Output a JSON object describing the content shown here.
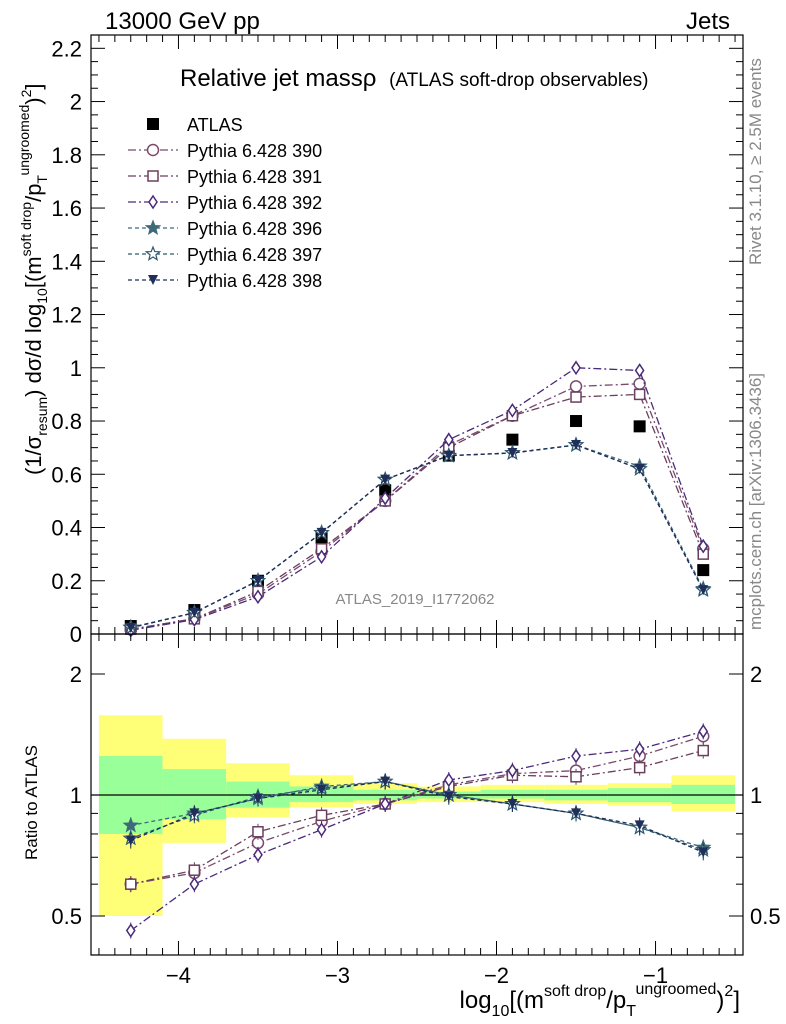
{
  "header": {
    "left": "13000 GeV pp",
    "right": "Jets"
  },
  "title": "Relative jet massρ",
  "subtitle": "(ATLAS soft-drop observables)",
  "watermark": "ATLAS_2019_I1772062",
  "side_right_top": "Rivet 3.1.10, ≥ 2.5M events",
  "side_right_bottom": "mcplots.cern.ch [arXiv:1306.3436]",
  "ylabel_main": {
    "a": "(1/σ",
    "a_sub": "resum",
    "b": ") dσ/d log",
    "b_sub": "10",
    "c": "[(m",
    "c_sup": "soft drop",
    "d": "/p",
    "d_sub": "T",
    "d_sup": "ungroomed",
    "e": ")",
    "e_sup": "2",
    "f": "]"
  },
  "ylabel_ratio": "Ratio to ATLAS",
  "xlabel": {
    "a": "log",
    "a_sub": "10",
    "b": "[(m",
    "b_sup": "soft drop",
    "c": "/p",
    "c_sub": "T",
    "c_sup": "ungroomed",
    "d": ")",
    "d_sup": "2",
    "e": "]"
  },
  "colors": {
    "atlas": "#000000",
    "p390": "#7b4b6e",
    "p391": "#6b3f5e",
    "p392": "#4a2a7a",
    "p396": "#3e6a7a",
    "p397": "#2f5a6f",
    "p398": "#1f2f5a",
    "band_inner": "#99ff99",
    "band_outer": "#ffff77"
  },
  "chart_data": {
    "type": "line",
    "x": [
      -4.3,
      -3.9,
      -3.5,
      -3.1,
      -2.7,
      -2.3,
      -1.9,
      -1.5,
      -1.1,
      -0.7
    ],
    "xlim": [
      -4.55,
      -0.45
    ],
    "ylim_main": [
      0,
      2.25
    ],
    "ylim_ratio": [
      0.34,
      2.25
    ],
    "x_ticks": [
      "−4",
      "−3",
      "−2",
      "−1"
    ],
    "x_tick_values": [
      -4,
      -3,
      -2,
      -1
    ],
    "y_ticks_main": [
      "0",
      "0.2",
      "0.4",
      "0.6",
      "0.8",
      "1",
      "1.2",
      "1.4",
      "1.6",
      "1.8",
      "2",
      "2.2"
    ],
    "y_tick_values_main": [
      0,
      0.2,
      0.4,
      0.6,
      0.8,
      1,
      1.2,
      1.4,
      1.6,
      1.8,
      2,
      2.2
    ],
    "y_ticks_ratio": [
      "0.5",
      "1",
      "2"
    ],
    "y_tick_values_ratio": [
      0.5,
      1,
      2
    ],
    "bin_edges": [
      -4.5,
      -4.1,
      -3.7,
      -3.3,
      -2.9,
      -2.5,
      -2.1,
      -1.7,
      -1.3,
      -0.9,
      -0.5
    ],
    "band_inner": [
      [
        0.8,
        1.25
      ],
      [
        0.87,
        1.16
      ],
      [
        0.93,
        1.08
      ],
      [
        0.96,
        1.05
      ],
      [
        0.97,
        1.03
      ],
      [
        0.98,
        1.02
      ],
      [
        0.98,
        1.03
      ],
      [
        0.97,
        1.03
      ],
      [
        0.96,
        1.04
      ],
      [
        0.95,
        1.06
      ]
    ],
    "band_outer": [
      [
        0.5,
        1.58
      ],
      [
        0.76,
        1.38
      ],
      [
        0.88,
        1.2
      ],
      [
        0.93,
        1.12
      ],
      [
        0.95,
        1.07
      ],
      [
        0.96,
        1.05
      ],
      [
        0.96,
        1.06
      ],
      [
        0.95,
        1.06
      ],
      [
        0.94,
        1.07
      ],
      [
        0.91,
        1.12
      ]
    ],
    "series": [
      {
        "name": "ATLAS",
        "key": "atlas",
        "marker": "square-filled",
        "dash": "none",
        "values": [
          0.03,
          0.09,
          0.2,
          0.36,
          0.54,
          0.67,
          0.73,
          0.8,
          0.78,
          0.24
        ],
        "ratio": [
          1,
          1,
          1,
          1,
          1,
          1,
          1,
          1,
          1,
          1
        ]
      },
      {
        "name": "Pythia 6.428 390",
        "key": "p390",
        "marker": "circle-open",
        "dash": "8,3,2,3",
        "values": [
          0.017,
          0.058,
          0.15,
          0.31,
          0.5,
          0.71,
          0.82,
          0.93,
          0.94,
          0.32
        ],
        "ratio": [
          0.6,
          0.64,
          0.76,
          0.86,
          0.95,
          1.06,
          1.13,
          1.15,
          1.25,
          1.4
        ]
      },
      {
        "name": "Pythia 6.428 391",
        "key": "p391",
        "marker": "square-open",
        "dash": "8,3,2,3",
        "values": [
          0.018,
          0.057,
          0.16,
          0.32,
          0.5,
          0.7,
          0.82,
          0.89,
          0.9,
          0.3
        ],
        "ratio": [
          0.6,
          0.65,
          0.81,
          0.89,
          0.95,
          1.05,
          1.12,
          1.11,
          1.17,
          1.29
        ]
      },
      {
        "name": "Pythia 6.428 392",
        "key": "p392",
        "marker": "diamond-open",
        "dash": "8,3,2,3",
        "values": [
          0.014,
          0.054,
          0.14,
          0.29,
          0.51,
          0.73,
          0.84,
          1.0,
          0.99,
          0.33
        ],
        "ratio": [
          0.46,
          0.6,
          0.71,
          0.82,
          0.95,
          1.09,
          1.15,
          1.25,
          1.3,
          1.44
        ]
      },
      {
        "name": "Pythia 6.428 396",
        "key": "p396",
        "marker": "star-filled",
        "dash": "4,3",
        "values": [
          0.025,
          0.08,
          0.2,
          0.38,
          0.58,
          0.67,
          0.68,
          0.71,
          0.63,
          0.17
        ],
        "ratio": [
          0.84,
          0.9,
          0.98,
          1.05,
          1.08,
          1.0,
          0.95,
          0.9,
          0.83,
          0.74
        ]
      },
      {
        "name": "Pythia 6.428 397",
        "key": "p397",
        "marker": "star-open",
        "dash": "4,3",
        "values": [
          0.024,
          0.08,
          0.2,
          0.38,
          0.58,
          0.67,
          0.68,
          0.71,
          0.62,
          0.165
        ],
        "ratio": [
          0.78,
          0.89,
          0.99,
          1.04,
          1.08,
          1.0,
          0.95,
          0.9,
          0.83,
          0.73
        ]
      },
      {
        "name": "Pythia 6.428 398",
        "key": "p398",
        "marker": "triangle-down-filled",
        "dash": "4,3",
        "values": [
          0.023,
          0.08,
          0.2,
          0.38,
          0.58,
          0.67,
          0.68,
          0.71,
          0.62,
          0.165
        ],
        "ratio": [
          0.77,
          0.9,
          0.98,
          1.03,
          1.08,
          0.99,
          0.95,
          0.9,
          0.84,
          0.72
        ]
      }
    ]
  }
}
